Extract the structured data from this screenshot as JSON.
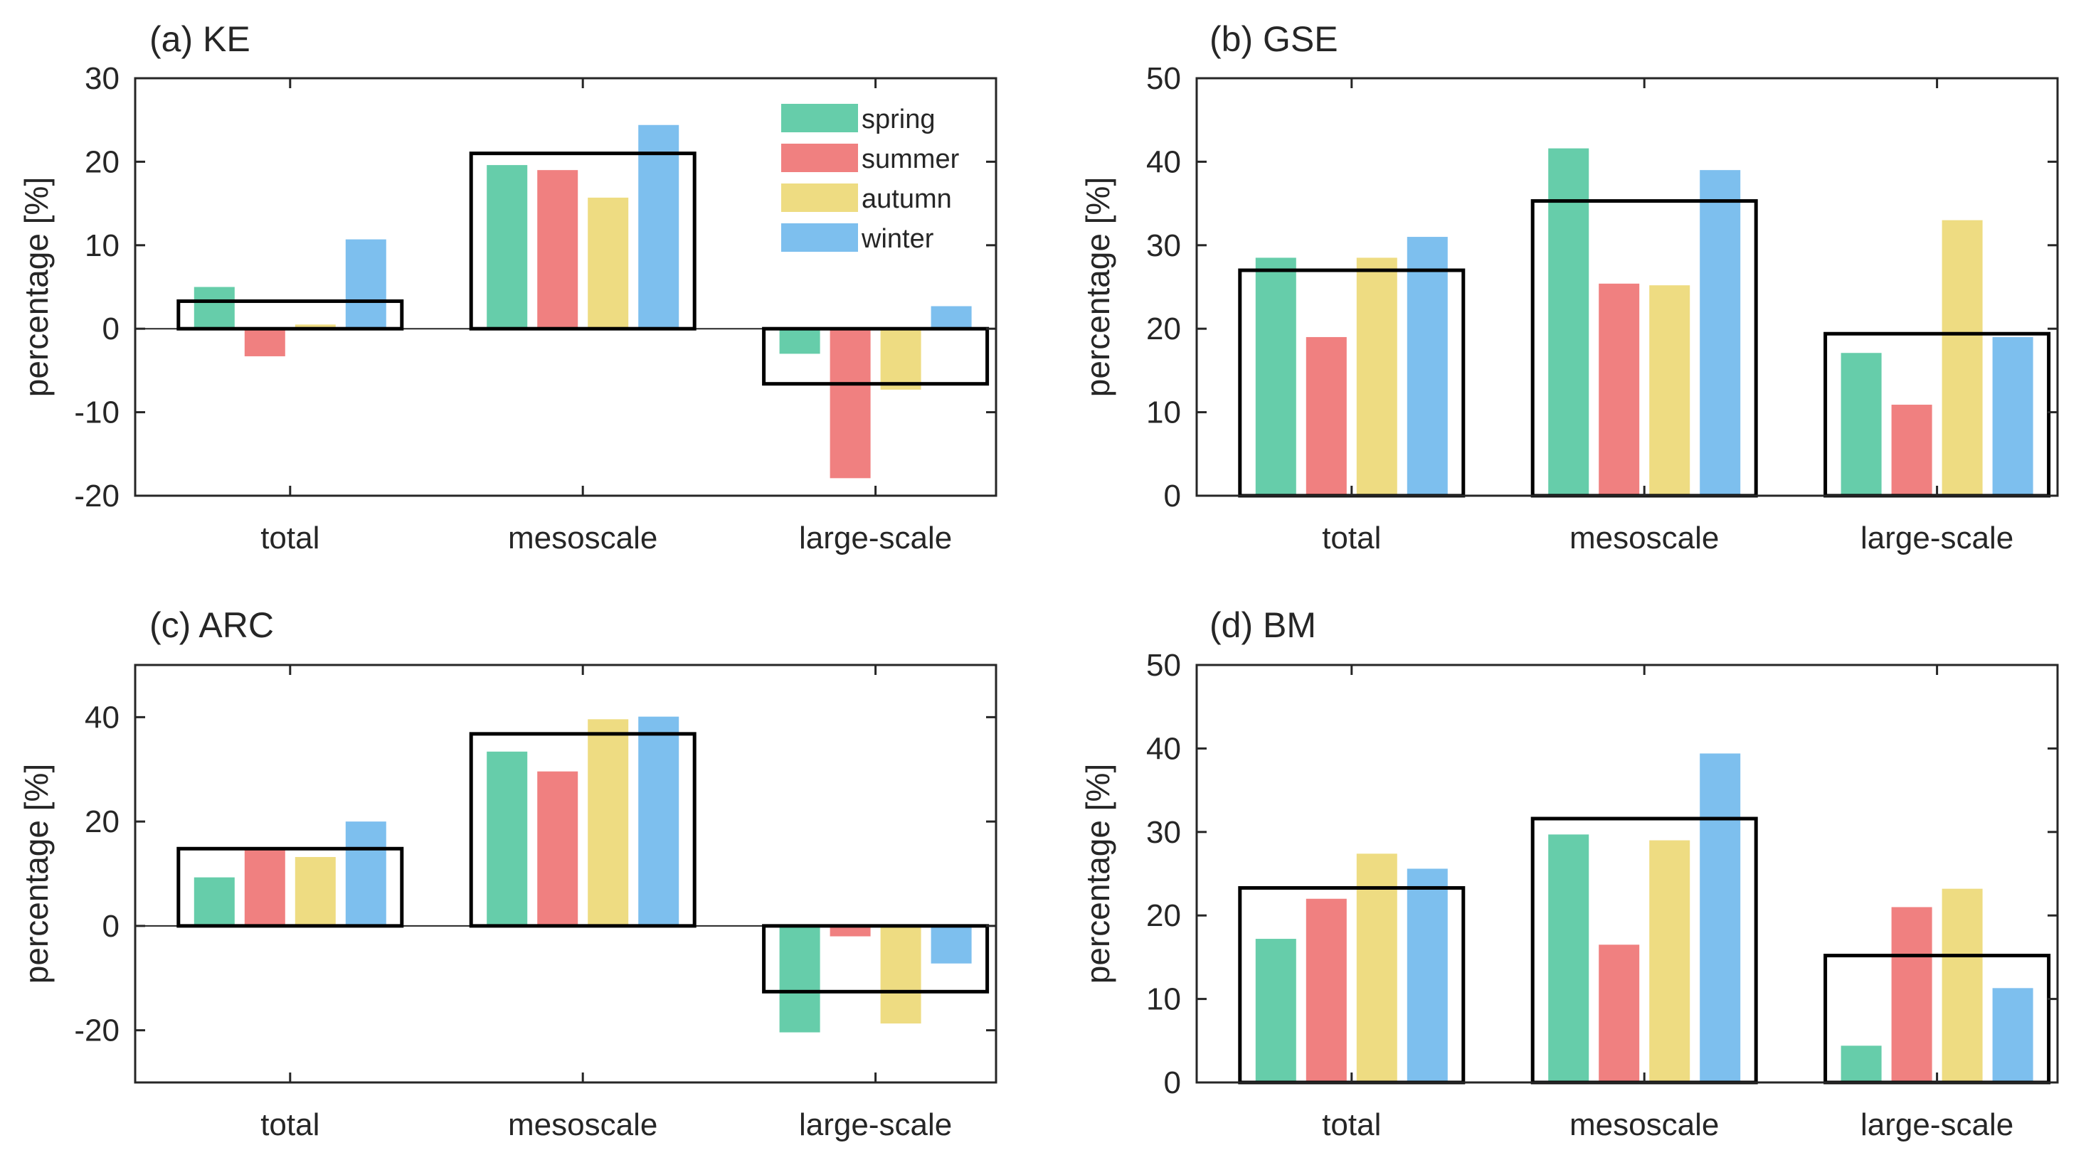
{
  "chart_data": [
    {
      "type": "bar",
      "title": "(a) KE",
      "ylabel": "percentage [%]",
      "xlabel": "",
      "categories": [
        "total",
        "mesoscale",
        "large-scale"
      ],
      "ylim": [
        -20,
        30
      ],
      "yticks": [
        -20,
        -10,
        0,
        10,
        20,
        30
      ],
      "show_legend": true,
      "series": [
        {
          "name": "spring",
          "color": "#66CDAA",
          "values": [
            5,
            19.6,
            -3
          ]
        },
        {
          "name": "summer",
          "color": "#F08080",
          "values": [
            -3.3,
            19,
            -17.9
          ]
        },
        {
          "name": "autumn",
          "color": "#EEDC82",
          "values": [
            0.5,
            15.7,
            -7.3
          ]
        },
        {
          "name": "winter",
          "color": "#7DBFEE",
          "values": [
            10.7,
            24.4,
            2.7
          ]
        }
      ],
      "annual": [
        3.3,
        21,
        -6.6
      ]
    },
    {
      "type": "bar",
      "title": "(b) GSE",
      "ylabel": "percentage [%]",
      "xlabel": "",
      "categories": [
        "total",
        "mesoscale",
        "large-scale"
      ],
      "ylim": [
        0,
        50
      ],
      "yticks": [
        0,
        10,
        20,
        30,
        40,
        50
      ],
      "show_legend": false,
      "series": [
        {
          "name": "spring",
          "color": "#66CDAA",
          "values": [
            28.5,
            41.6,
            17.1
          ]
        },
        {
          "name": "summer",
          "color": "#F08080",
          "values": [
            19,
            25.4,
            10.9
          ]
        },
        {
          "name": "autumn",
          "color": "#EEDC82",
          "values": [
            28.5,
            25.2,
            33
          ]
        },
        {
          "name": "winter",
          "color": "#7DBFEE",
          "values": [
            31,
            39,
            19
          ]
        }
      ],
      "annual": [
        27,
        35.3,
        19.4
      ]
    },
    {
      "type": "bar",
      "title": "(c) ARC",
      "ylabel": "percentage [%]",
      "xlabel": "",
      "categories": [
        "total",
        "mesoscale",
        "large-scale"
      ],
      "ylim": [
        -30,
        50
      ],
      "yticks": [
        -20,
        0,
        20,
        40
      ],
      "show_legend": false,
      "series": [
        {
          "name": "spring",
          "color": "#66CDAA",
          "values": [
            9.3,
            33.4,
            -20.4
          ]
        },
        {
          "name": "summer",
          "color": "#F08080",
          "values": [
            15,
            29.6,
            -2
          ]
        },
        {
          "name": "autumn",
          "color": "#EEDC82",
          "values": [
            13.2,
            39.6,
            -18.7
          ]
        },
        {
          "name": "winter",
          "color": "#7DBFEE",
          "values": [
            20,
            40.1,
            -7.2
          ]
        }
      ],
      "annual": [
        14.8,
        36.8,
        -12.6
      ]
    },
    {
      "type": "bar",
      "title": "(d) BM",
      "ylabel": "percentage [%]",
      "xlabel": "",
      "categories": [
        "total",
        "mesoscale",
        "large-scale"
      ],
      "ylim": [
        0,
        50
      ],
      "yticks": [
        0,
        10,
        20,
        30,
        40,
        50
      ],
      "show_legend": false,
      "series": [
        {
          "name": "spring",
          "color": "#66CDAA",
          "values": [
            17.2,
            29.7,
            4.4
          ]
        },
        {
          "name": "summer",
          "color": "#F08080",
          "values": [
            22,
            16.5,
            21
          ]
        },
        {
          "name": "autumn",
          "color": "#EEDC82",
          "values": [
            27.4,
            29,
            23.2
          ]
        },
        {
          "name": "winter",
          "color": "#7DBFEE",
          "values": [
            25.6,
            39.4,
            11.3
          ]
        }
      ],
      "annual": [
        23.3,
        31.6,
        15.2
      ]
    }
  ]
}
